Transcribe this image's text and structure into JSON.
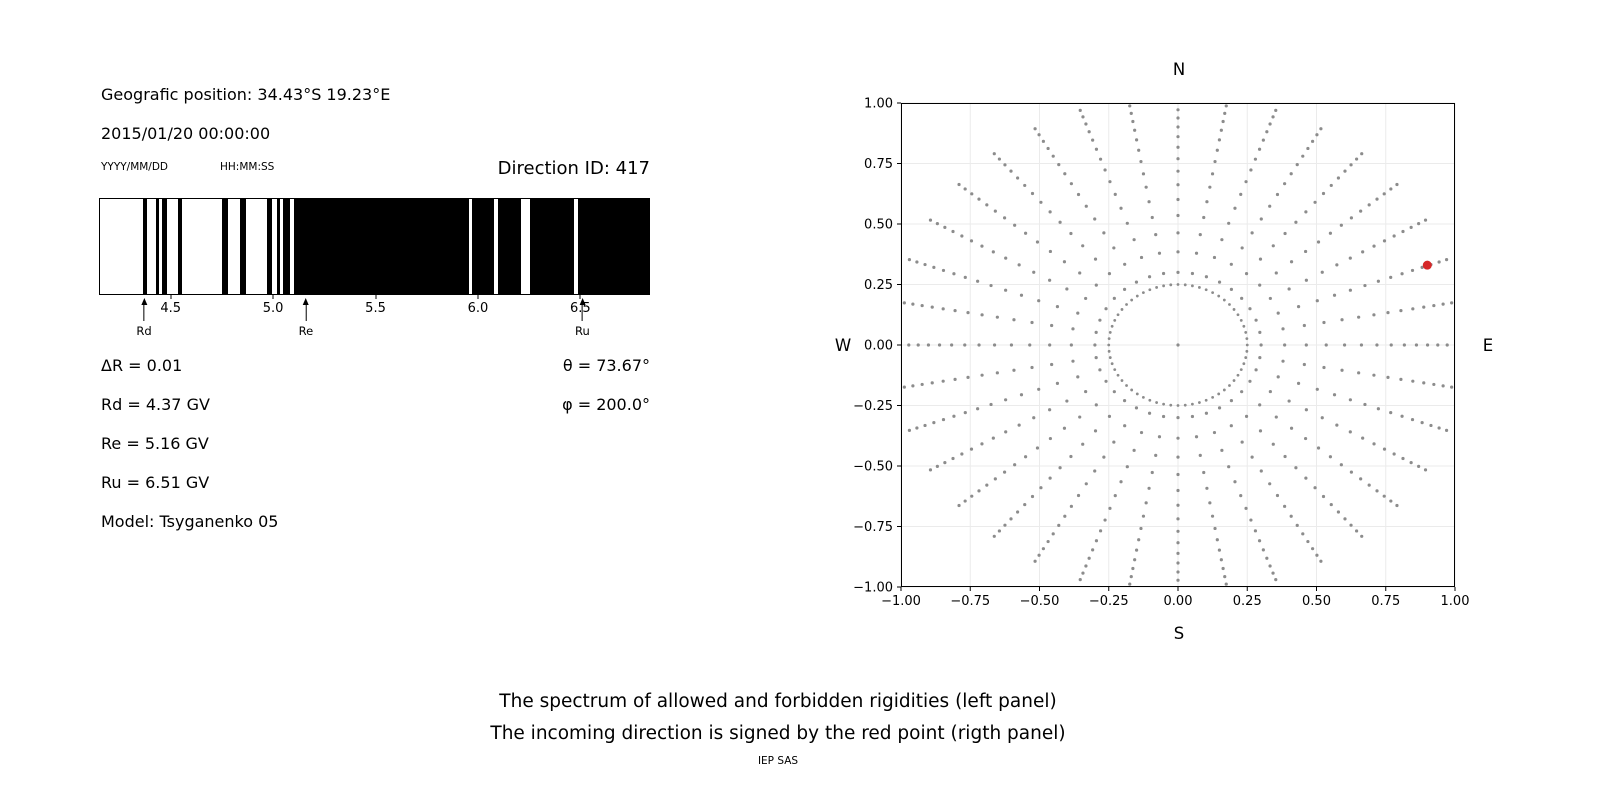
{
  "header": {
    "geographic_position": "Geografic position: 34.43°S 19.23°E",
    "datetime": "2015/01/20 00:00:00",
    "date_format_label": "YYYY/MM/DD",
    "time_format_label": "HH:MM:SS",
    "direction_id_label": "Direction ID: 417"
  },
  "left_panel": {
    "delta_r": "ΔR = 0.01",
    "rd": "Rd = 4.37 GV",
    "re": "Re = 5.16 GV",
    "ru": "Ru = 6.51 GV",
    "model": "Model: Tsyganenko 05",
    "theta": "θ = 73.67°",
    "phi": "φ = 200.0°"
  },
  "caption": {
    "line1": "The spectrum of allowed and forbidden rigidities (left panel)",
    "line2": "The incoming direction is signed by the red point (rigth panel)",
    "credit": "IEP SAS"
  },
  "chart_data": [
    {
      "id": "rigidity-spectrum",
      "type": "bar",
      "panel": "left",
      "xlim": [
        4.15,
        6.84
      ],
      "xticks": [
        4.5,
        5.0,
        5.5,
        6.0,
        6.5
      ],
      "xtick_labels": [
        "4.5",
        "5.0",
        "5.5",
        "6.0",
        "6.5"
      ],
      "forbidden_bands_gv": [
        [
          4.363,
          4.381
        ],
        [
          4.422,
          4.439
        ],
        [
          4.454,
          4.476
        ],
        [
          4.534,
          4.554
        ],
        [
          4.746,
          4.778
        ],
        [
          4.834,
          4.866
        ],
        [
          4.966,
          4.993
        ],
        [
          5.015,
          5.032
        ],
        [
          5.046,
          5.083
        ],
        [
          5.102,
          5.959
        ],
        [
          5.971,
          6.08
        ],
        [
          6.102,
          6.212
        ],
        [
          6.259,
          6.471
        ],
        [
          6.49,
          6.84
        ]
      ],
      "cutoffs": {
        "delta_r_gv": 0.01,
        "rd_gv": 4.37,
        "re_gv": 5.16,
        "ru_gv": 6.51
      },
      "markers": [
        {
          "label": "Rd",
          "value": 4.37
        },
        {
          "label": "Re",
          "value": 5.16
        },
        {
          "label": "Ru",
          "value": 6.51
        }
      ],
      "bar_color": "#000000",
      "bg_color": "#ffffff"
    },
    {
      "id": "incoming-direction-map",
      "type": "scatter",
      "panel": "right",
      "xlim": [
        -1,
        1
      ],
      "ylim": [
        -1,
        1
      ],
      "xticks": [
        -1,
        -0.75,
        -0.5,
        -0.25,
        0,
        0.25,
        0.5,
        0.75,
        1
      ],
      "yticks": [
        -1,
        -0.75,
        -0.5,
        -0.25,
        0,
        0.25,
        0.5,
        0.75,
        1
      ],
      "xtick_labels": [
        "−1.00",
        "−0.75",
        "−0.50",
        "−0.25",
        "0.00",
        "0.25",
        "0.50",
        "0.75",
        "1.00"
      ],
      "ytick_labels": [
        "−1.00",
        "−0.75",
        "−0.50",
        "−0.25",
        "0.00",
        "0.25",
        "0.50",
        "0.75",
        "1.00"
      ],
      "compass": {
        "top": "N",
        "bottom": "S",
        "left": "W",
        "right": "E"
      },
      "spokes": {
        "count": 36,
        "start_angle_deg": 0,
        "step_deg": 10,
        "r_start": 0.3,
        "r_max": 1.04,
        "first_step": 0.085,
        "step_factor": 0.92
      },
      "inner_ring": {
        "radius": 0.25,
        "num_dots": 60
      },
      "center_dot": {
        "x": 0,
        "y": 0
      },
      "red_point": {
        "x": 0.9,
        "y": 0.33
      },
      "theta_deg": 73.67,
      "phi_deg": 200.0,
      "dot_color": "#8c8c8c",
      "red_color": "#d62728",
      "grid": true,
      "grid_color": "#ebebeb"
    }
  ]
}
